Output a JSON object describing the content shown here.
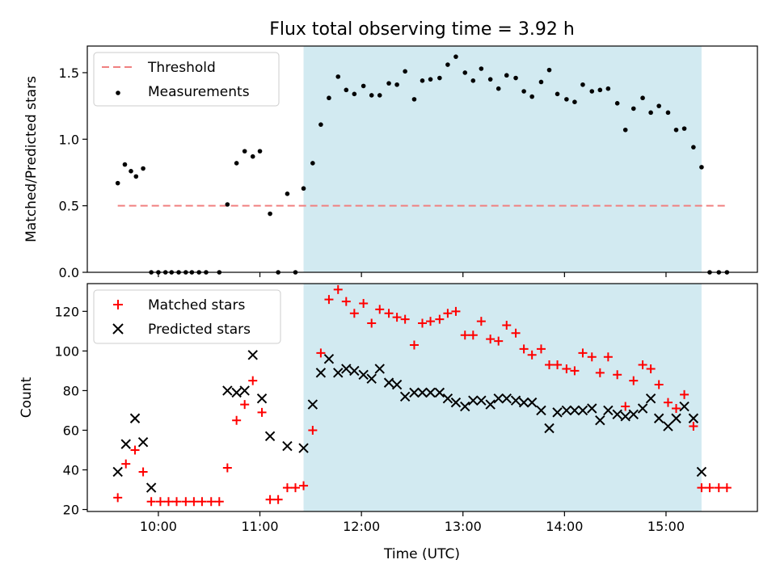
{
  "title": "Flux total observing time = 3.92 h",
  "xlabel": "Time (UTC)",
  "xticks": [
    "10:00",
    "11:00",
    "12:00",
    "13:00",
    "14:00",
    "15:00"
  ],
  "colors": {
    "threshold": "#f08080",
    "measurements": "#000000",
    "matched": "#ff0000",
    "predicted": "#000000",
    "shade": "#add8e6"
  },
  "chart_data": [
    {
      "type": "scatter",
      "ylabel": "Matched/Predicted stars",
      "ylim": [
        0,
        1.7
      ],
      "xlim": [
        9.3,
        15.9
      ],
      "shaded_span": [
        11.43,
        15.35
      ],
      "legend_position": "top-left",
      "yticks": [
        "0.0",
        "0.5",
        "1.0",
        "1.5"
      ],
      "threshold": {
        "name": "Threshold",
        "value": 0.5,
        "x": [
          9.6,
          15.6
        ]
      },
      "series": [
        {
          "name": "Measurements",
          "points": [
            [
              9.6,
              0.67
            ],
            [
              9.67,
              0.81
            ],
            [
              9.73,
              0.76
            ],
            [
              9.78,
              0.72
            ],
            [
              9.85,
              0.78
            ],
            [
              9.93,
              0.0
            ],
            [
              10.0,
              0.0
            ],
            [
              10.07,
              0.0
            ],
            [
              10.13,
              0.0
            ],
            [
              10.2,
              0.0
            ],
            [
              10.27,
              0.0
            ],
            [
              10.33,
              0.0
            ],
            [
              10.4,
              0.0
            ],
            [
              10.47,
              0.0
            ],
            [
              10.6,
              0.0
            ],
            [
              10.68,
              0.51
            ],
            [
              10.77,
              0.82
            ],
            [
              10.85,
              0.91
            ],
            [
              10.93,
              0.87
            ],
            [
              11.0,
              0.91
            ],
            [
              11.1,
              0.44
            ],
            [
              11.18,
              0.0
            ],
            [
              11.27,
              0.59
            ],
            [
              11.35,
              0.0
            ],
            [
              11.43,
              0.63
            ],
            [
              11.52,
              0.82
            ],
            [
              11.6,
              1.11
            ],
            [
              11.68,
              1.31
            ],
            [
              11.77,
              1.47
            ],
            [
              11.85,
              1.37
            ],
            [
              11.93,
              1.34
            ],
            [
              12.02,
              1.4
            ],
            [
              12.1,
              1.33
            ],
            [
              12.18,
              1.33
            ],
            [
              12.27,
              1.42
            ],
            [
              12.35,
              1.41
            ],
            [
              12.43,
              1.51
            ],
            [
              12.52,
              1.3
            ],
            [
              12.6,
              1.44
            ],
            [
              12.68,
              1.45
            ],
            [
              12.77,
              1.46
            ],
            [
              12.85,
              1.56
            ],
            [
              12.93,
              1.62
            ],
            [
              13.02,
              1.5
            ],
            [
              13.1,
              1.44
            ],
            [
              13.18,
              1.53
            ],
            [
              13.27,
              1.45
            ],
            [
              13.35,
              1.38
            ],
            [
              13.43,
              1.48
            ],
            [
              13.52,
              1.46
            ],
            [
              13.6,
              1.36
            ],
            [
              13.68,
              1.32
            ],
            [
              13.77,
              1.43
            ],
            [
              13.85,
              1.52
            ],
            [
              13.93,
              1.34
            ],
            [
              14.02,
              1.3
            ],
            [
              14.1,
              1.28
            ],
            [
              14.18,
              1.41
            ],
            [
              14.27,
              1.36
            ],
            [
              14.35,
              1.37
            ],
            [
              14.43,
              1.38
            ],
            [
              14.52,
              1.27
            ],
            [
              14.6,
              1.07
            ],
            [
              14.68,
              1.23
            ],
            [
              14.77,
              1.31
            ],
            [
              14.85,
              1.2
            ],
            [
              14.93,
              1.25
            ],
            [
              15.02,
              1.2
            ],
            [
              15.1,
              1.07
            ],
            [
              15.18,
              1.08
            ],
            [
              15.27,
              0.94
            ],
            [
              15.35,
              0.79
            ],
            [
              15.43,
              0.0
            ],
            [
              15.52,
              0.0
            ],
            [
              15.6,
              0.0
            ]
          ]
        }
      ]
    },
    {
      "type": "scatter",
      "ylabel": "Count",
      "ylim": [
        19,
        134
      ],
      "xlim": [
        9.3,
        15.9
      ],
      "shaded_span": [
        11.43,
        15.35
      ],
      "legend_position": "top-left",
      "yticks": [
        "20",
        "40",
        "60",
        "80",
        "100",
        "120"
      ],
      "series": [
        {
          "name": "Matched stars",
          "marker": "plus",
          "points": [
            [
              9.6,
              26
            ],
            [
              9.68,
              43
            ],
            [
              9.77,
              50
            ],
            [
              9.85,
              39
            ],
            [
              9.93,
              24
            ],
            [
              10.02,
              24
            ],
            [
              10.1,
              24
            ],
            [
              10.18,
              24
            ],
            [
              10.27,
              24
            ],
            [
              10.35,
              24
            ],
            [
              10.43,
              24
            ],
            [
              10.52,
              24
            ],
            [
              10.6,
              24
            ],
            [
              10.68,
              41
            ],
            [
              10.77,
              65
            ],
            [
              10.85,
              73
            ],
            [
              10.93,
              85
            ],
            [
              11.02,
              69
            ],
            [
              11.1,
              25
            ],
            [
              11.18,
              25
            ],
            [
              11.27,
              31
            ],
            [
              11.35,
              31
            ],
            [
              11.43,
              32
            ],
            [
              11.52,
              60
            ],
            [
              11.6,
              99
            ],
            [
              11.68,
              126
            ],
            [
              11.77,
              131
            ],
            [
              11.85,
              125
            ],
            [
              11.93,
              119
            ],
            [
              12.02,
              124
            ],
            [
              12.1,
              114
            ],
            [
              12.18,
              121
            ],
            [
              12.27,
              119
            ],
            [
              12.35,
              117
            ],
            [
              12.43,
              116
            ],
            [
              12.52,
              103
            ],
            [
              12.6,
              114
            ],
            [
              12.68,
              115
            ],
            [
              12.77,
              116
            ],
            [
              12.85,
              119
            ],
            [
              12.93,
              120
            ],
            [
              13.02,
              108
            ],
            [
              13.1,
              108
            ],
            [
              13.18,
              115
            ],
            [
              13.27,
              106
            ],
            [
              13.35,
              105
            ],
            [
              13.43,
              113
            ],
            [
              13.52,
              109
            ],
            [
              13.6,
              101
            ],
            [
              13.68,
              98
            ],
            [
              13.77,
              101
            ],
            [
              13.85,
              93
            ],
            [
              13.93,
              93
            ],
            [
              14.02,
              91
            ],
            [
              14.1,
              90
            ],
            [
              14.18,
              99
            ],
            [
              14.27,
              97
            ],
            [
              14.35,
              89
            ],
            [
              14.43,
              97
            ],
            [
              14.52,
              88
            ],
            [
              14.6,
              72
            ],
            [
              14.68,
              85
            ],
            [
              14.77,
              93
            ],
            [
              14.85,
              91
            ],
            [
              14.93,
              83
            ],
            [
              15.02,
              74
            ],
            [
              15.1,
              71
            ],
            [
              15.18,
              78
            ],
            [
              15.27,
              62
            ],
            [
              15.35,
              31
            ],
            [
              15.43,
              31
            ],
            [
              15.52,
              31
            ],
            [
              15.6,
              31
            ]
          ]
        },
        {
          "name": "Predicted stars",
          "marker": "x",
          "points": [
            [
              9.6,
              39
            ],
            [
              9.68,
              53
            ],
            [
              9.77,
              66
            ],
            [
              9.85,
              54
            ],
            [
              9.93,
              31
            ],
            [
              10.68,
              80
            ],
            [
              10.77,
              79
            ],
            [
              10.85,
              80
            ],
            [
              10.93,
              98
            ],
            [
              11.02,
              76
            ],
            [
              11.1,
              57
            ],
            [
              11.27,
              52
            ],
            [
              11.43,
              51
            ],
            [
              11.52,
              73
            ],
            [
              11.6,
              89
            ],
            [
              11.68,
              96
            ],
            [
              11.77,
              89
            ],
            [
              11.85,
              91
            ],
            [
              11.93,
              90
            ],
            [
              12.02,
              88
            ],
            [
              12.1,
              86
            ],
            [
              12.18,
              91
            ],
            [
              12.27,
              84
            ],
            [
              12.35,
              83
            ],
            [
              12.43,
              77
            ],
            [
              12.52,
              79
            ],
            [
              12.6,
              79
            ],
            [
              12.68,
              79
            ],
            [
              12.77,
              79
            ],
            [
              12.85,
              76
            ],
            [
              12.93,
              74
            ],
            [
              13.02,
              72
            ],
            [
              13.1,
              75
            ],
            [
              13.18,
              75
            ],
            [
              13.27,
              73
            ],
            [
              13.35,
              76
            ],
            [
              13.43,
              76
            ],
            [
              13.52,
              75
            ],
            [
              13.6,
              74
            ],
            [
              13.68,
              74
            ],
            [
              13.77,
              70
            ],
            [
              13.85,
              61
            ],
            [
              13.93,
              69
            ],
            [
              14.02,
              70
            ],
            [
              14.1,
              70
            ],
            [
              14.18,
              70
            ],
            [
              14.27,
              71
            ],
            [
              14.35,
              65
            ],
            [
              14.43,
              70
            ],
            [
              14.52,
              68
            ],
            [
              14.6,
              67
            ],
            [
              14.68,
              68
            ],
            [
              14.77,
              71
            ],
            [
              14.85,
              76
            ],
            [
              14.93,
              66
            ],
            [
              15.02,
              62
            ],
            [
              15.1,
              66
            ],
            [
              15.18,
              72
            ],
            [
              15.27,
              66
            ],
            [
              15.35,
              39
            ]
          ]
        }
      ]
    }
  ]
}
